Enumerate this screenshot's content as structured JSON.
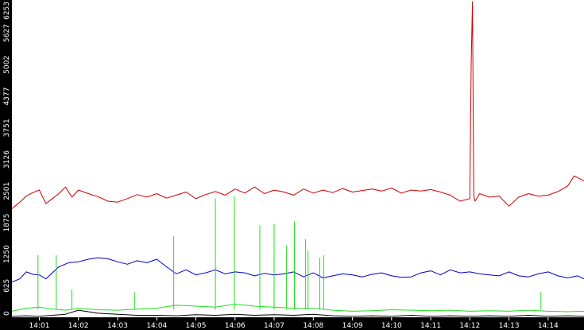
{
  "chart_data": {
    "type": "line",
    "title": "",
    "xlabel": "",
    "ylabel": "",
    "ylim": [
      0,
      6253
    ],
    "xlim": [
      "14:00:18",
      "14:14:55"
    ],
    "y_ticks": [
      "0",
      "625",
      "1250",
      "1875",
      "2501",
      "3126",
      "3751",
      "4377",
      "5002",
      "5627",
      "6253"
    ],
    "x_ticks": [
      "14:01",
      "14:02",
      "14:03",
      "14:04",
      "14:05",
      "14:06",
      "14:07",
      "14:08",
      "14:09",
      "14:10",
      "14:11",
      "14:12",
      "14:13",
      "14:14"
    ],
    "grid": false,
    "legend": "none",
    "colors": {
      "background": "#ffffff",
      "axis_band": "#000000",
      "axis_text": "#ffffff",
      "red": "#d00000",
      "blue": "#0000c8",
      "green": "#22dd22",
      "black": "#000000"
    },
    "series": [
      {
        "color": "red",
        "x": [
          "14:00:18",
          "14:00:30",
          "14:00:40",
          "14:00:50",
          "14:01:00",
          "14:01:10",
          "14:01:20",
          "14:01:30",
          "14:01:40",
          "14:01:50",
          "14:02:00",
          "14:02:15",
          "14:02:30",
          "14:02:45",
          "14:03:00",
          "14:03:15",
          "14:03:30",
          "14:03:45",
          "14:04:00",
          "14:04:15",
          "14:04:30",
          "14:04:45",
          "14:05:00",
          "14:05:15",
          "14:05:30",
          "14:05:45",
          "14:06:00",
          "14:06:15",
          "14:06:30",
          "14:06:45",
          "14:07:00",
          "14:07:15",
          "14:07:30",
          "14:07:45",
          "14:08:00",
          "14:08:15",
          "14:08:30",
          "14:08:45",
          "14:09:00",
          "14:09:15",
          "14:09:30",
          "14:09:45",
          "14:10:00",
          "14:10:15",
          "14:10:30",
          "14:10:45",
          "14:11:00",
          "14:11:15",
          "14:11:30",
          "14:11:45",
          "14:12:00",
          "14:12:02",
          "14:12:04",
          "14:12:06",
          "14:12:08",
          "14:12:15",
          "14:12:30",
          "14:12:45",
          "14:13:00",
          "14:13:15",
          "14:13:30",
          "14:13:45",
          "14:14:00",
          "14:14:15",
          "14:14:30",
          "14:14:40",
          "14:14:55"
        ],
        "y": [
          2150,
          2280,
          2400,
          2470,
          2520,
          2250,
          2350,
          2450,
          2580,
          2380,
          2520,
          2450,
          2390,
          2300,
          2280,
          2350,
          2430,
          2380,
          2450,
          2360,
          2420,
          2480,
          2350,
          2430,
          2490,
          2420,
          2540,
          2460,
          2580,
          2450,
          2520,
          2480,
          2420,
          2540,
          2460,
          2520,
          2470,
          2550,
          2480,
          2510,
          2540,
          2500,
          2560,
          2460,
          2520,
          2500,
          2530,
          2480,
          2420,
          2300,
          2350,
          5000,
          6253,
          2400,
          2300,
          2450,
          2380,
          2400,
          2200,
          2380,
          2450,
          2400,
          2420,
          2490,
          2600,
          2800,
          2700
        ]
      },
      {
        "color": "blue",
        "x": [
          "14:00:18",
          "14:00:30",
          "14:00:40",
          "14:00:50",
          "14:01:00",
          "14:01:10",
          "14:01:20",
          "14:01:30",
          "14:01:45",
          "14:02:00",
          "14:02:15",
          "14:02:30",
          "14:02:45",
          "14:03:00",
          "14:03:15",
          "14:03:30",
          "14:03:45",
          "14:04:00",
          "14:04:15",
          "14:04:30",
          "14:04:45",
          "14:05:00",
          "14:05:15",
          "14:05:30",
          "14:05:45",
          "14:06:00",
          "14:06:15",
          "14:06:30",
          "14:06:45",
          "14:07:00",
          "14:07:15",
          "14:07:30",
          "14:07:45",
          "14:08:00",
          "14:08:15",
          "14:08:30",
          "14:08:45",
          "14:09:00",
          "14:09:15",
          "14:09:30",
          "14:09:45",
          "14:10:00",
          "14:10:15",
          "14:10:30",
          "14:10:45",
          "14:11:00",
          "14:11:15",
          "14:11:30",
          "14:11:45",
          "14:12:00",
          "14:12:15",
          "14:12:30",
          "14:12:45",
          "14:13:00",
          "14:13:15",
          "14:13:30",
          "14:13:45",
          "14:14:00",
          "14:14:15",
          "14:14:30",
          "14:14:45",
          "14:14:55"
        ],
        "y": [
          700,
          760,
          900,
          850,
          840,
          760,
          880,
          1000,
          1080,
          1100,
          1150,
          1180,
          1160,
          1100,
          1050,
          1120,
          1080,
          1150,
          1000,
          860,
          940,
          840,
          880,
          940,
          860,
          900,
          880,
          820,
          870,
          840,
          860,
          900,
          800,
          880,
          780,
          820,
          860,
          840,
          800,
          850,
          880,
          820,
          790,
          800,
          880,
          920,
          840,
          940,
          880,
          900,
          860,
          840,
          820,
          900,
          820,
          800,
          860,
          900,
          820,
          780,
          820,
          760
        ]
      },
      {
        "color": "green",
        "x": [
          "14:00:18",
          "14:00:40",
          "14:01:00",
          "14:01:20",
          "14:01:40",
          "14:02:00",
          "14:02:30",
          "14:03:00",
          "14:03:30",
          "14:04:00",
          "14:04:30",
          "14:05:00",
          "14:05:30",
          "14:06:00",
          "14:06:30",
          "14:07:00",
          "14:07:30",
          "14:08:00",
          "14:08:30",
          "14:09:00",
          "14:09:30",
          "14:10:00",
          "14:10:30",
          "14:11:00",
          "14:11:30",
          "14:12:00",
          "14:12:30",
          "14:13:00",
          "14:13:30",
          "14:14:00",
          "14:14:30",
          "14:14:55"
        ],
        "y": [
          120,
          180,
          200,
          160,
          140,
          180,
          150,
          140,
          160,
          180,
          240,
          220,
          200,
          260,
          220,
          200,
          180,
          180,
          140,
          120,
          130,
          150,
          140,
          130,
          140,
          120,
          130,
          120,
          140,
          120,
          110,
          120
        ]
      },
      {
        "color": "black",
        "x": [
          "14:00:18",
          "14:00:40",
          "14:01:00",
          "14:01:20",
          "14:01:40",
          "14:02:00",
          "14:02:30",
          "14:03:00",
          "14:03:30",
          "14:04:00",
          "14:04:30",
          "14:05:00",
          "14:05:30",
          "14:06:00",
          "14:06:30",
          "14:07:00",
          "14:07:30",
          "14:08:00",
          "14:08:30",
          "14:09:00",
          "14:09:30",
          "14:10:00",
          "14:10:30",
          "14:11:00",
          "14:11:30",
          "14:12:00",
          "14:12:30",
          "14:13:00",
          "14:13:30",
          "14:14:00",
          "14:14:30",
          "14:14:55"
        ],
        "y": [
          20,
          30,
          20,
          40,
          60,
          140,
          80,
          60,
          40,
          40,
          30,
          50,
          40,
          60,
          40,
          50,
          40,
          60,
          30,
          20,
          30,
          20,
          40,
          20,
          30,
          20,
          30,
          20,
          40,
          20,
          30,
          20
        ]
      }
    ],
    "spikes": [
      {
        "color": "green",
        "x": "14:00:58",
        "y": 1230
      },
      {
        "color": "green",
        "x": "14:01:26",
        "y": 1230
      },
      {
        "color": "green",
        "x": "14:01:50",
        "y": 550
      },
      {
        "color": "green",
        "x": "14:03:26",
        "y": 500
      },
      {
        "color": "green",
        "x": "14:04:26",
        "y": 1600
      },
      {
        "color": "green",
        "x": "14:05:30",
        "y": 2350
      },
      {
        "color": "green",
        "x": "14:05:59",
        "y": 2400
      },
      {
        "color": "green",
        "x": "14:06:38",
        "y": 1820
      },
      {
        "color": "green",
        "x": "14:07:00",
        "y": 1850
      },
      {
        "color": "green",
        "x": "14:07:19",
        "y": 1420
      },
      {
        "color": "green",
        "x": "14:07:31",
        "y": 1900
      },
      {
        "color": "green",
        "x": "14:07:48",
        "y": 1550
      },
      {
        "color": "green",
        "x": "14:07:52",
        "y": 1330
      },
      {
        "color": "green",
        "x": "14:08:10",
        "y": 1180
      },
      {
        "color": "green",
        "x": "14:08:16",
        "y": 1230
      },
      {
        "color": "green",
        "x": "14:13:49",
        "y": 500
      }
    ]
  }
}
